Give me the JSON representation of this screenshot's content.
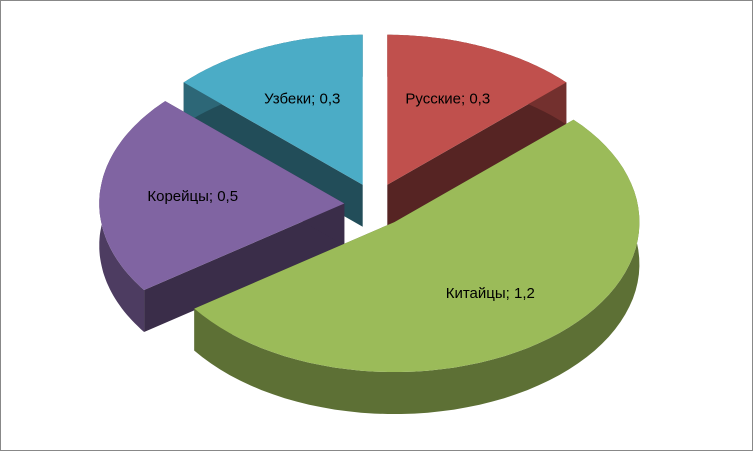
{
  "chart_data": {
    "type": "pie3d",
    "values": [
      0.3,
      1.2,
      0.5,
      0.3
    ],
    "value_labels": [
      "Русские; 0,3",
      "Китайцы; 1,2",
      "Корейцы; 0,5",
      "Узбеки; 0,3"
    ],
    "colors": [
      "#c0504d",
      "#9bbb59",
      "#8064a2",
      "#4bacc6"
    ]
  }
}
